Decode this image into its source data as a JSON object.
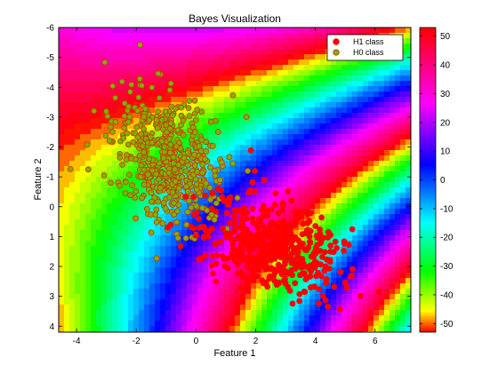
{
  "chart_data": {
    "type": "scatter",
    "title": "Bayes Visualization",
    "xlabel": "Feature 1",
    "ylabel": "Feature 2",
    "xlim": [
      -4.6,
      7.2
    ],
    "ylim": [
      -6,
      4.2
    ],
    "y_reversed": true,
    "x_ticks": [
      -4,
      -2,
      0,
      2,
      4,
      6
    ],
    "y_ticks": [
      -6,
      -5,
      -4,
      -3,
      -2,
      -1,
      0,
      1,
      2,
      3,
      4
    ],
    "grid": false,
    "legend_position": "top-right",
    "background": "filled contour of the log-likelihood ratio (jet-like colormap, wrapped)",
    "colorbar": {
      "ticks": [
        50,
        40,
        30,
        20,
        10,
        0,
        -10,
        -20,
        -30,
        -40,
        -50
      ],
      "range": [
        -53,
        53
      ]
    },
    "series": [
      {
        "name": "H1 class",
        "color": "#ff0000",
        "edge": "#ff0000",
        "mean": [
          2.5,
          1.3
        ],
        "approx_count": 520
      },
      {
        "name": "H0 class",
        "color": "#7fb000",
        "edge": "#cc3300",
        "mean": [
          -0.9,
          -1.6
        ],
        "approx_count": 520
      }
    ]
  }
}
